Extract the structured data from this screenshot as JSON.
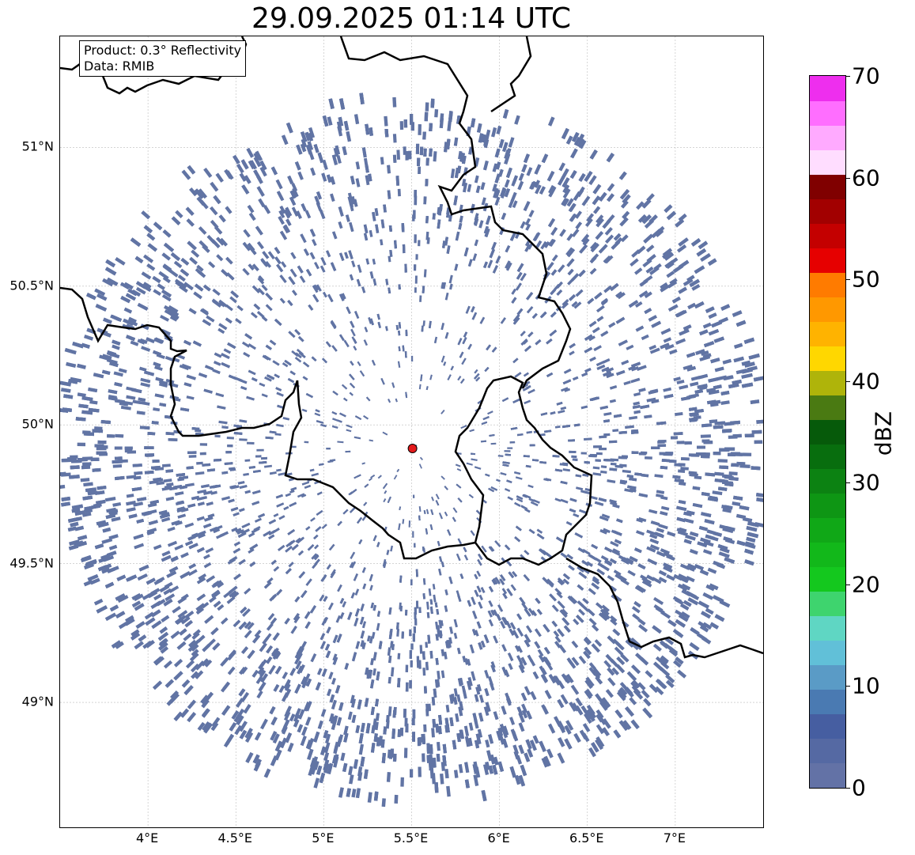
{
  "title": "29.09.2025 01:14 UTC",
  "info_box": {
    "product": "Product: 0.3° Reflectivity",
    "data": "Data: RMIB"
  },
  "map": {
    "lon_range": [
      3.5,
      7.5
    ],
    "lat_range": [
      48.55,
      51.4
    ],
    "x_ticks": [
      "4°E",
      "4.5°E",
      "5°E",
      "5.5°E",
      "6°E",
      "6.5°E",
      "7°E"
    ],
    "y_ticks": [
      "51°N",
      "50.5°N",
      "50°N",
      "49.5°N",
      "49°N"
    ],
    "gridlines": true,
    "radar_site": {
      "lon": 5.505,
      "lat": 49.915,
      "color": "#e31a1c"
    },
    "echo_color": "#6174a4"
  },
  "colorbar": {
    "label": "dBZ",
    "ticks": [
      "0",
      "10",
      "20",
      "30",
      "40",
      "50",
      "60",
      "70"
    ],
    "colors": [
      "#6372a6",
      "#5569a3",
      "#465ea1",
      "#4a7ab2",
      "#5a9bc6",
      "#61c0d8",
      "#5fd6c3",
      "#3ed46e",
      "#14c81e",
      "#12b81a",
      "#10a817",
      "#0e9614",
      "#0c8212",
      "#086e0e",
      "#065a0a",
      "#4a7a12",
      "#afb40a",
      "#ffd700",
      "#ffb300",
      "#ff9800",
      "#ff7b00",
      "#e60000",
      "#c40000",
      "#a20000",
      "#800000",
      "#ffddff",
      "#ffaaff",
      "#ff6eff",
      "#ee2eee"
    ]
  }
}
